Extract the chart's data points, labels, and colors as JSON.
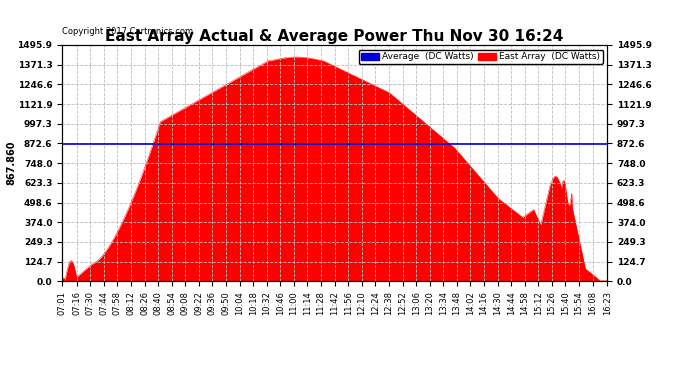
{
  "title": "East Array Actual & Average Power Thu Nov 30 16:24",
  "copyright": "Copyright 2017 Cartronics.com",
  "average_value": 867.86,
  "y_max": 1495.9,
  "y_min": 0.0,
  "y_ticks_display": [
    0.0,
    124.7,
    249.3,
    374.0,
    498.6,
    623.3,
    748.0,
    872.6,
    997.3,
    1121.9,
    1246.6,
    1371.3,
    1495.9
  ],
  "left_ylabel": "867.860",
  "legend_avg_color": "#0000DD",
  "legend_east_color": "#FF0000",
  "fill_color": "#FF0000",
  "avg_line_color": "#0000DD",
  "grid_color": "#BBBBBB",
  "background_color": "#FFFFFF",
  "title_fontsize": 11,
  "x_tick_labels": [
    "07:01",
    "07:16",
    "07:30",
    "07:44",
    "07:58",
    "08:12",
    "08:26",
    "08:40",
    "08:54",
    "09:08",
    "09:22",
    "09:36",
    "09:50",
    "10:04",
    "10:18",
    "10:32",
    "10:46",
    "11:00",
    "11:14",
    "11:28",
    "11:42",
    "11:56",
    "12:10",
    "12:24",
    "12:38",
    "12:52",
    "13:06",
    "13:20",
    "13:34",
    "13:48",
    "14:02",
    "14:16",
    "14:30",
    "14:44",
    "14:58",
    "15:12",
    "15:26",
    "15:40",
    "15:54",
    "16:08",
    "16:23"
  ]
}
